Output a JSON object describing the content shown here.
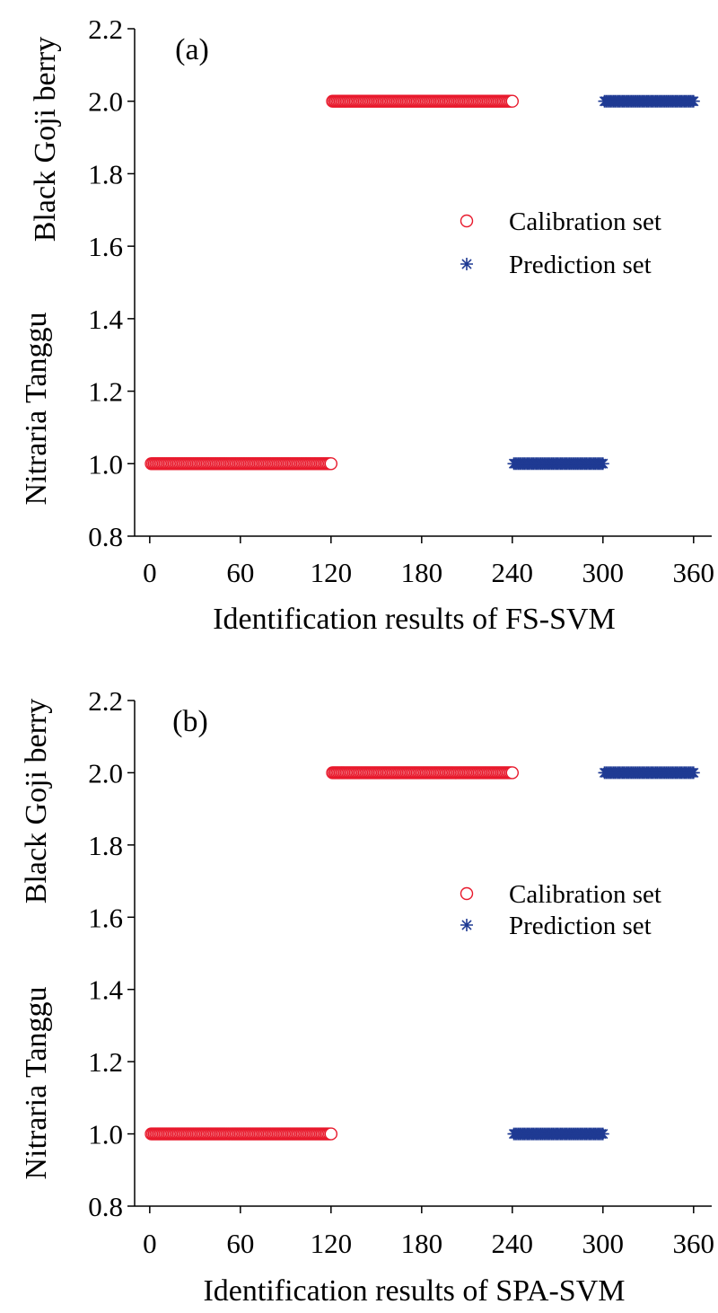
{
  "chart_data": [
    {
      "type": "scatter",
      "panel_label": "(a)",
      "xlabel": "Identification results of FS-SVM",
      "ylabel_upper": "Black Goji berry",
      "ylabel_lower": "Nitraria Tanggu",
      "xlim": [
        -10,
        372
      ],
      "ylim": [
        0.8,
        2.2
      ],
      "xticks": [
        0,
        60,
        120,
        180,
        240,
        300,
        360
      ],
      "xtick_labels": [
        "0",
        "60",
        "120",
        "180",
        "240",
        "300",
        "360"
      ],
      "yticks": [
        0.8,
        1.0,
        1.2,
        1.4,
        1.6,
        1.8,
        2.0,
        2.2
      ],
      "ytick_labels": [
        "0.8",
        "1.0",
        "1.2",
        "1.4",
        "1.6",
        "1.8",
        "2.0",
        "2.2"
      ],
      "grid": false,
      "legend_position": "middle-right",
      "series": [
        {
          "name": "Calibration set",
          "marker": "circle",
          "color": "#e8192c",
          "segments": [
            {
              "x_start": 1,
              "x_end": 120,
              "y": 1.0
            },
            {
              "x_start": 121,
              "x_end": 240,
              "y": 2.0
            }
          ]
        },
        {
          "name": "Prediction set",
          "marker": "asterisk",
          "color": "#1f3a93",
          "segments": [
            {
              "x_start": 241,
              "x_end": 300,
              "y": 1.0
            },
            {
              "x_start": 301,
              "x_end": 360,
              "y": 2.0
            }
          ]
        }
      ]
    },
    {
      "type": "scatter",
      "panel_label": "(b)",
      "xlabel": "Identification results of SPA-SVM",
      "ylabel_upper": "Black Goji berry",
      "ylabel_lower": "Nitraria Tanggu",
      "xlim": [
        -10,
        372
      ],
      "ylim": [
        0.8,
        2.2
      ],
      "xticks": [
        0,
        60,
        120,
        180,
        240,
        300,
        360
      ],
      "xtick_labels": [
        "0",
        "60",
        "120",
        "180",
        "240",
        "300",
        "360"
      ],
      "yticks": [
        0.8,
        1.0,
        1.2,
        1.4,
        1.6,
        1.8,
        2.0,
        2.2
      ],
      "ytick_labels": [
        "0.8",
        "1.0",
        "1.2",
        "1.4",
        "1.6",
        "1.8",
        "2.0",
        "2.2"
      ],
      "grid": false,
      "legend_position": "middle-right",
      "series": [
        {
          "name": "Calibration set",
          "marker": "circle",
          "color": "#e8192c",
          "segments": [
            {
              "x_start": 1,
              "x_end": 120,
              "y": 1.0
            },
            {
              "x_start": 121,
              "x_end": 240,
              "y": 2.0
            }
          ]
        },
        {
          "name": "Prediction set",
          "marker": "asterisk",
          "color": "#1f3a93",
          "segments": [
            {
              "x_start": 241,
              "x_end": 300,
              "y": 1.0
            },
            {
              "x_start": 301,
              "x_end": 360,
              "y": 2.0
            }
          ]
        }
      ]
    }
  ]
}
